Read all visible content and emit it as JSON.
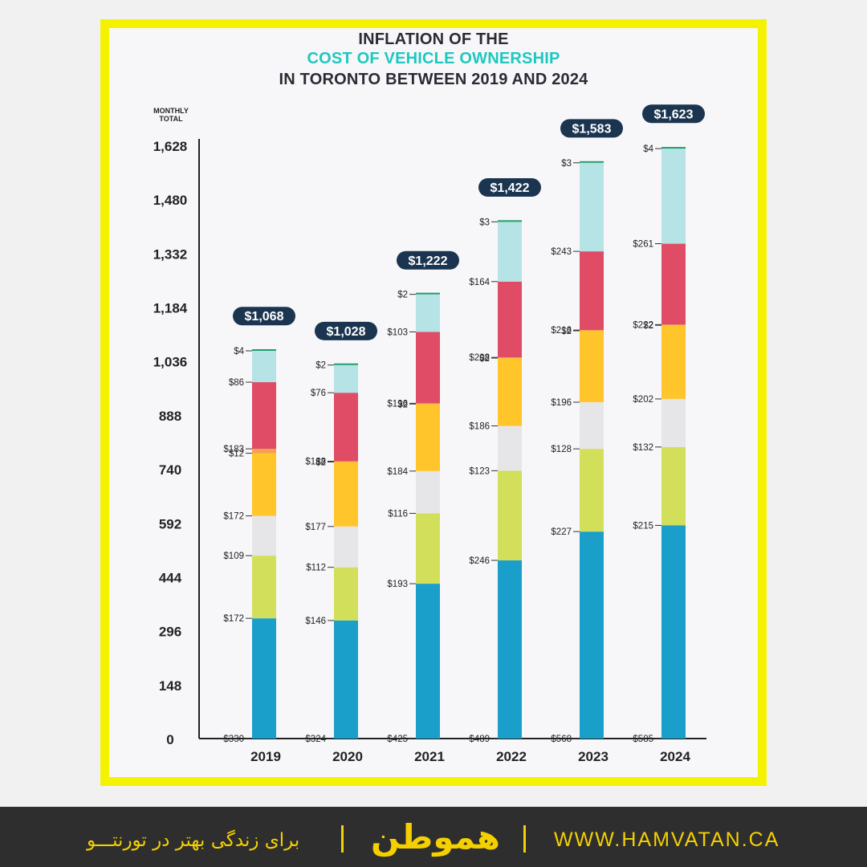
{
  "chart_data": {
    "type": "bar",
    "stacked": true,
    "title_line1": "INFLATION OF THE",
    "title_line2": "COST OF VEHICLE OWNERSHIP",
    "title_line3": "IN TORONTO BETWEEN 2019 AND 2024",
    "ylabel_line1": "MONTHLY",
    "ylabel_line2": "TOTAL",
    "ylim": [
      0,
      1628
    ],
    "yticks": [
      "0",
      "148",
      "296",
      "444",
      "592",
      "740",
      "888",
      "1,036",
      "1,184",
      "1,332",
      "1,480",
      "1,628"
    ],
    "categories": [
      "2019",
      "2020",
      "2021",
      "2022",
      "2023",
      "2024"
    ],
    "totals": [
      "$1,068",
      "$1,028",
      "$1,222",
      "$1,422",
      "$1,583",
      "$1,623"
    ],
    "colors": [
      "#1a9fca",
      "#d2df5b",
      "#e6e6e8",
      "#ffc52b",
      "#f4a04f",
      "#e04c66",
      "#b5e3e6",
      "#1f9d6a"
    ],
    "series": [
      {
        "values": [
          330,
          324,
          425,
          489,
          568,
          585
        ],
        "labels": [
          "$330",
          "$324",
          "$425",
          "$489",
          "$568",
          "$585"
        ]
      },
      {
        "values": [
          172,
          146,
          193,
          246,
          227,
          215
        ],
        "labels": [
          "$172",
          "$146",
          "$193",
          "$246",
          "$227",
          "$215"
        ]
      },
      {
        "values": [
          109,
          112,
          116,
          123,
          128,
          132
        ],
        "labels": [
          "$109",
          "$112",
          "$116",
          "$123",
          "$128",
          "$132"
        ]
      },
      {
        "values": [
          172,
          177,
          184,
          186,
          196,
          202
        ],
        "labels": [
          "$172",
          "$177",
          "$184",
          "$186",
          "$196",
          "$202"
        ]
      },
      {
        "values": [
          12,
          2,
          2,
          2,
          2,
          2
        ],
        "labels": [
          "$12",
          "$2",
          "$2",
          "$2",
          "$2",
          "$2"
        ]
      },
      {
        "values": [
          183,
          188,
          196,
          208,
          216,
          222
        ],
        "labels": [
          "$183",
          "$188",
          "$196",
          "$208",
          "$216",
          "$222"
        ]
      },
      {
        "values": [
          86,
          76,
          103,
          164,
          243,
          261
        ],
        "labels": [
          "$86",
          "$76",
          "$103",
          "$164",
          "$243",
          "$261"
        ]
      },
      {
        "values": [
          4,
          2,
          2,
          3,
          3,
          4
        ],
        "labels": [
          "$4",
          "$2",
          "$2",
          "$3",
          "$3",
          "$4"
        ]
      }
    ]
  },
  "footer": {
    "url": "WWW.HAMVATAN.CA",
    "logo": "هموطن",
    "slogan": "برای زندگی بهتر در تورنتـــو"
  }
}
